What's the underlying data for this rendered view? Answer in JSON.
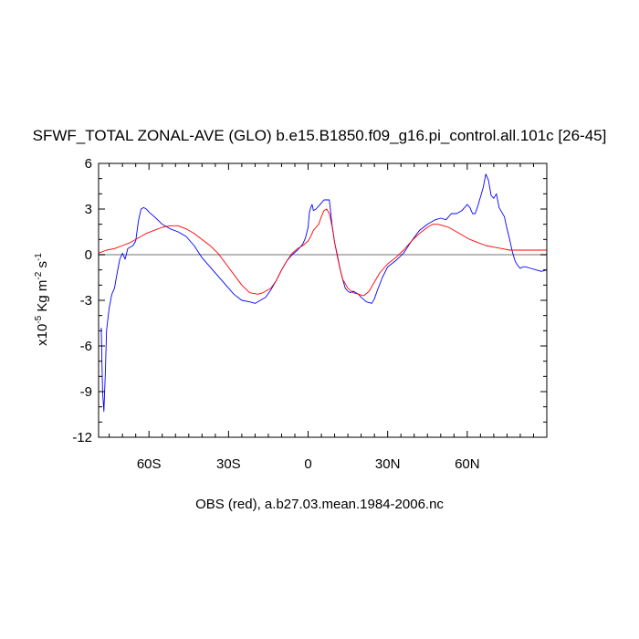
{
  "title": "SFWF_TOTAL ZONAL-AVE (GLO) b.e15.B1850.f09_g16.pi_control.all.101c [26-45]",
  "footer": "OBS (red), a.b27.03.mean.1984-2006.nc",
  "ylabel": {
    "prefix": "x10",
    "exp": "-5",
    "unit_a": " Kg m",
    "unit_a_exp": "-2",
    "unit_b": " s",
    "unit_b_exp": "-1"
  },
  "colors": {
    "model": "#0000ff",
    "obs": "#ff0000",
    "zero_line": "#a0a0a0",
    "axis": "#000000"
  },
  "chart_data": {
    "type": "line",
    "title": "SFWF_TOTAL ZONAL-AVE (GLO) b.e15.B1850.f09_g16.pi_control.all.101c [26-45]",
    "xlim": [
      -79,
      90
    ],
    "ylim": [
      -12,
      6
    ],
    "x_ticks": [
      {
        "value": -60,
        "label": "60S"
      },
      {
        "value": -30,
        "label": "30S"
      },
      {
        "value": 0,
        "label": "0"
      },
      {
        "value": 30,
        "label": "30N"
      },
      {
        "value": 60,
        "label": "60N"
      }
    ],
    "y_ticks": [
      {
        "value": 6,
        "label": "6"
      },
      {
        "value": 3,
        "label": "3"
      },
      {
        "value": 0,
        "label": "0"
      },
      {
        "value": -3,
        "label": "-3"
      },
      {
        "value": -6,
        "label": "-6"
      },
      {
        "value": -9,
        "label": "-9"
      },
      {
        "value": -12,
        "label": "-12"
      }
    ],
    "reference_line": 0,
    "series": [
      {
        "color": "#0000ff",
        "x": [
          -78,
          -77.5,
          -77,
          -76.5,
          -76,
          -75,
          -74,
          -73,
          -72,
          -71,
          -70,
          -69,
          -68,
          -67,
          -66,
          -65,
          -64,
          -63,
          -62,
          -61,
          -60,
          -58,
          -55,
          -52,
          -49,
          -46,
          -43,
          -40,
          -37,
          -34,
          -31,
          -28,
          -25,
          -22,
          -20,
          -18,
          -16,
          -14,
          -12,
          -10,
          -8,
          -6,
          -4,
          -3,
          -2,
          -1,
          0,
          0.5,
          1,
          1.5,
          2,
          3,
          4,
          5,
          6,
          7,
          8,
          9,
          10,
          11,
          12,
          13,
          14,
          15,
          16,
          17,
          18,
          19,
          20,
          22,
          24,
          25,
          26,
          28,
          30,
          33,
          36,
          39,
          42,
          45,
          48,
          50,
          52,
          54,
          56,
          58,
          60,
          61,
          62,
          63,
          64,
          65,
          66,
          67,
          68,
          69,
          70,
          71,
          72,
          73,
          74,
          75,
          76,
          77,
          78,
          79,
          80,
          81,
          82,
          84,
          86,
          88,
          90
        ],
        "values": [
          -4.8,
          -9,
          -10.3,
          -8,
          -5,
          -3.5,
          -2.6,
          -2.2,
          -1.2,
          -0.3,
          0.1,
          -0.3,
          0.4,
          0.5,
          0.6,
          0.9,
          2.2,
          3.0,
          3.1,
          3.0,
          2.8,
          2.5,
          2.0,
          1.7,
          1.5,
          1.2,
          0.6,
          -0.2,
          -0.8,
          -1.4,
          -2.0,
          -2.6,
          -3.0,
          -3.1,
          -3.2,
          -3.0,
          -2.8,
          -2.3,
          -1.7,
          -1.0,
          -0.4,
          0.0,
          0.3,
          0.5,
          0.7,
          1.1,
          1.8,
          2.8,
          3.1,
          3.3,
          2.9,
          3.0,
          3.2,
          3.4,
          3.6,
          3.6,
          3.6,
          2.0,
          0.8,
          0.0,
          -0.9,
          -1.6,
          -2.2,
          -2.4,
          -2.5,
          -2.4,
          -2.5,
          -2.6,
          -2.8,
          -3.1,
          -3.2,
          -2.9,
          -2.4,
          -1.5,
          -0.8,
          -0.4,
          0.1,
          0.9,
          1.6,
          2.0,
          2.3,
          2.4,
          2.3,
          2.7,
          2.7,
          2.9,
          3.3,
          3.1,
          2.7,
          2.7,
          3.2,
          3.8,
          4.4,
          5.3,
          4.9,
          3.9,
          3.7,
          4.0,
          3.1,
          2.8,
          2.5,
          1.7,
          1.0,
          0.2,
          -0.4,
          -0.7,
          -0.9,
          -0.8,
          -0.8,
          -0.9,
          -1.0,
          -1.1,
          -1.0
        ]
      },
      {
        "color": "#ff0000",
        "x": [
          -79,
          -76,
          -73,
          -70,
          -67,
          -64,
          -61,
          -58,
          -55,
          -52,
          -49,
          -46,
          -43,
          -40,
          -37,
          -34,
          -31,
          -28,
          -25,
          -22,
          -19,
          -17,
          -14,
          -12,
          -10,
          -8,
          -6,
          -4,
          -2,
          0,
          1,
          2,
          3,
          4,
          5,
          6,
          7,
          8,
          9,
          10,
          11,
          12,
          13,
          15,
          17,
          19,
          21,
          23,
          25,
          27,
          30,
          33,
          36,
          39,
          42,
          45,
          47,
          49,
          51,
          53,
          55,
          58,
          61,
          64,
          67,
          70,
          73,
          76,
          80,
          84,
          88,
          90
        ],
        "values": [
          0.1,
          0.3,
          0.4,
          0.6,
          0.8,
          1.1,
          1.4,
          1.6,
          1.8,
          1.9,
          1.9,
          1.7,
          1.4,
          1.0,
          0.6,
          0.1,
          -0.6,
          -1.3,
          -2.0,
          -2.5,
          -2.6,
          -2.5,
          -2.2,
          -1.7,
          -1.0,
          -0.4,
          0.1,
          0.4,
          0.6,
          0.9,
          1.2,
          1.6,
          1.8,
          2.0,
          2.5,
          2.9,
          3.0,
          2.7,
          1.9,
          0.8,
          -0.1,
          -0.9,
          -1.6,
          -2.2,
          -2.5,
          -2.6,
          -2.7,
          -2.4,
          -1.8,
          -1.2,
          -0.6,
          -0.2,
          0.3,
          0.9,
          1.4,
          1.8,
          2.0,
          2.0,
          1.9,
          1.8,
          1.6,
          1.3,
          1.0,
          0.8,
          0.6,
          0.5,
          0.4,
          0.3,
          0.3,
          0.3,
          0.3,
          0.3
        ]
      }
    ]
  }
}
